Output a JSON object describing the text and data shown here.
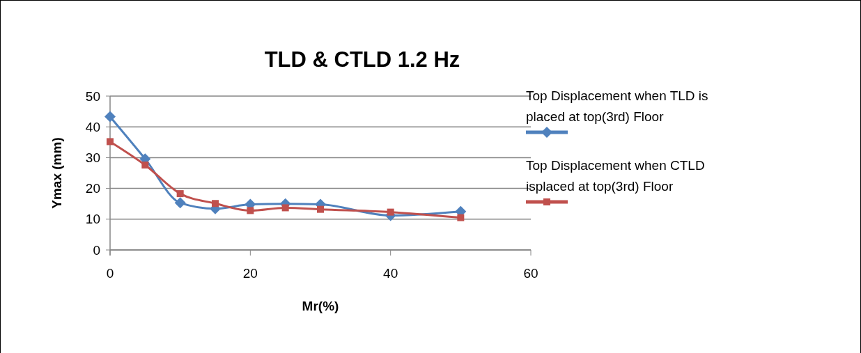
{
  "chart_data": {
    "type": "line",
    "title": "TLD & CTLD 1.2 Hz",
    "xlabel": "Mr(%)",
    "ylabel": "Ymax (mm)",
    "x": [
      0,
      5,
      10,
      15,
      20,
      25,
      30,
      40,
      50
    ],
    "xlim": [
      0,
      60
    ],
    "xticks": [
      0,
      20,
      40,
      60
    ],
    "ylim": [
      0,
      50
    ],
    "yticks": [
      0,
      10,
      20,
      30,
      40,
      50
    ],
    "grid": "y",
    "legend": "right",
    "series": [
      {
        "name": "Top Displacement when TLD is placed at top(3rd) Floor",
        "color": "#4f81bd",
        "marker": "diamond",
        "values": [
          43.3,
          29.6,
          15.3,
          13.4,
          14.8,
          15,
          14.8,
          11.2,
          12.5
        ]
      },
      {
        "name": "Top Displacement when CTLD isplaced at top(3rd) Floor",
        "color": "#c0504d",
        "marker": "square",
        "values": [
          35.2,
          27.6,
          18.3,
          15.1,
          12.8,
          13.7,
          13.2,
          12.3,
          10.5
        ]
      }
    ]
  }
}
